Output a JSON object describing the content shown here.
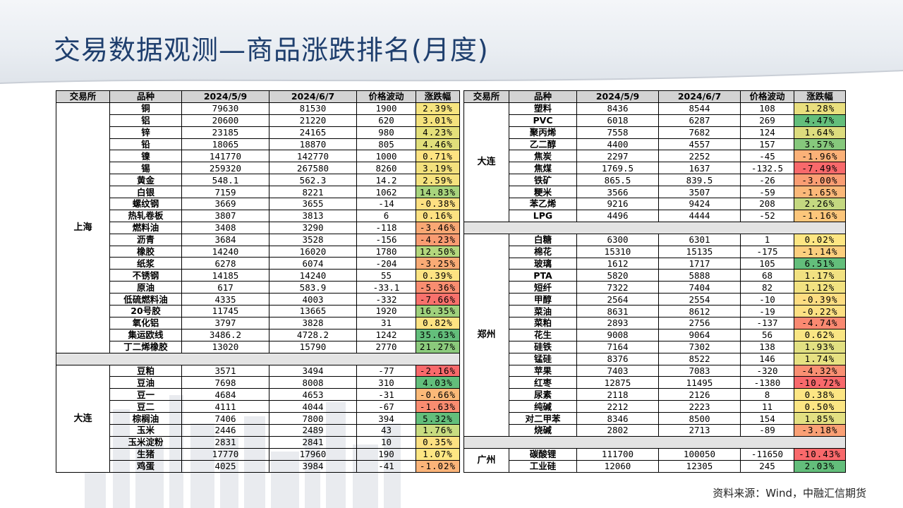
{
  "title": "交易数据观测—商品涨跌排名(月度)",
  "source": "资料来源：Wind，中融汇信期货",
  "headers": [
    "交易所",
    "品种",
    "2024/5/9",
    "2024/6/7",
    "价格波动",
    "涨跌幅"
  ],
  "left": {
    "groups": [
      {
        "exchange": "上海",
        "rows": [
          [
            "铜",
            "79630",
            "81530",
            "1900",
            "2.39%",
            "#f6e47f"
          ],
          [
            "铝",
            "20600",
            "21220",
            "620",
            "3.01%",
            "#f4e27d"
          ],
          [
            "锌",
            "23185",
            "24165",
            "980",
            "4.23%",
            "#e4e07a"
          ],
          [
            "铅",
            "18065",
            "18870",
            "805",
            "4.46%",
            "#e1df7b"
          ],
          [
            "镍",
            "141770",
            "142770",
            "1000",
            "0.71%",
            "#fde382"
          ],
          [
            "锡",
            "259320",
            "267580",
            "8260",
            "3.19%",
            "#f3e17d"
          ],
          [
            "黄金",
            "548.1",
            "562.3",
            "14.2",
            "2.59%",
            "#f5e27e"
          ],
          [
            "白银",
            "7159",
            "8221",
            "1062",
            "14.83%",
            "#a8d47d"
          ],
          [
            "螺纹钢",
            "3669",
            "3655",
            "-14",
            "-0.38%",
            "#fde081"
          ],
          [
            "热轧卷板",
            "3807",
            "3813",
            "6",
            "0.16%",
            "#fde182"
          ],
          [
            "燃料油",
            "3408",
            "3290",
            "-118",
            "-3.46%",
            "#f9a874"
          ],
          [
            "沥青",
            "3684",
            "3528",
            "-156",
            "-4.23%",
            "#f99c72"
          ],
          [
            "橡胶",
            "14240",
            "16020",
            "1780",
            "12.50%",
            "#b4d77d"
          ],
          [
            "纸浆",
            "6278",
            "6074",
            "-204",
            "-3.25%",
            "#f9ab75"
          ],
          [
            "不锈钢",
            "14185",
            "14240",
            "55",
            "0.39%",
            "#fde382"
          ],
          [
            "原油",
            "617",
            "583.9",
            "-33.1",
            "-5.36%",
            "#f98d70"
          ],
          [
            "低硫燃料油",
            "4335",
            "4003",
            "-332",
            "-7.66%",
            "#f8716c"
          ],
          [
            "20号胶",
            "11745",
            "13665",
            "1920",
            "16.35%",
            "#9fd17c"
          ],
          [
            "氧化铝",
            "3797",
            "3828",
            "31",
            "0.82%",
            "#fde382"
          ],
          [
            "集运欧线",
            "3486.2",
            "4728.2",
            "1242",
            "35.63%",
            "#63be7b"
          ],
          [
            "丁二烯橡胶",
            "13020",
            "15790",
            "2770",
            "21.27%",
            "#8bca7c"
          ]
        ]
      },
      {
        "exchange": "大连",
        "rows": [
          [
            "豆粕",
            "3571",
            "3494",
            "-77",
            "-2.16%",
            "#f8696b"
          ],
          [
            "豆油",
            "7698",
            "8008",
            "310",
            "4.03%",
            "#63be7b"
          ],
          [
            "豆一",
            "4684",
            "4653",
            "-31",
            "-0.66%",
            "#fbb978"
          ],
          [
            "豆二",
            "4111",
            "4044",
            "-67",
            "-1.63%",
            "#f98c70"
          ],
          [
            "棕榈油",
            "7406",
            "7800",
            "394",
            "5.32%",
            "#63be7b"
          ],
          [
            "玉米",
            "2446",
            "2489",
            "43",
            "1.76%",
            "#c9dc80"
          ],
          [
            "玉米淀粉",
            "2831",
            "2841",
            "10",
            "0.35%",
            "#fde182"
          ],
          [
            "生猪",
            "17770",
            "17960",
            "190",
            "1.07%",
            "#fde683"
          ],
          [
            "鸡蛋",
            "4025",
            "3984",
            "-41",
            "-1.02%",
            "#fbb479"
          ]
        ]
      }
    ]
  },
  "right": {
    "groups": [
      {
        "exchange": "大连",
        "rows": [
          [
            "塑料",
            "8436",
            "8544",
            "108",
            "1.28%",
            "#e9df7e"
          ],
          [
            "PVC",
            "6018",
            "6287",
            "269",
            "4.47%",
            "#63be7b"
          ],
          [
            "聚丙烯",
            "7558",
            "7682",
            "124",
            "1.64%",
            "#dcdc7e"
          ],
          [
            "乙二醇",
            "4400",
            "4557",
            "157",
            "3.57%",
            "#86c87c"
          ],
          [
            "焦炭",
            "2297",
            "2252",
            "-45",
            "-1.96%",
            "#fbb178"
          ],
          [
            "焦煤",
            "1769.5",
            "1637",
            "-132.5",
            "-7.49%",
            "#f8696b"
          ],
          [
            "铁矿",
            "865.5",
            "839.5",
            "-26",
            "-3.00%",
            "#fa9d73"
          ],
          [
            "粳米",
            "3566",
            "3507",
            "-59",
            "-1.65%",
            "#fbb879"
          ],
          [
            "苯乙烯",
            "9216",
            "9424",
            "208",
            "2.26%",
            "#c4d880"
          ],
          [
            "LPG",
            "4496",
            "4444",
            "-52",
            "-1.16%",
            "#fcc67b"
          ]
        ]
      },
      {
        "exchange": "郑州",
        "rows": [
          [
            "白糖",
            "6300",
            "6301",
            "1",
            "0.02%",
            "#fde683"
          ],
          [
            "棉花",
            "15310",
            "15135",
            "-175",
            "-1.14%",
            "#fccf7e"
          ],
          [
            "玻璃",
            "1612",
            "1717",
            "105",
            "6.51%",
            "#63be7b"
          ],
          [
            "PTA",
            "5820",
            "5888",
            "68",
            "1.17%",
            "#f1e181"
          ],
          [
            "短纤",
            "7322",
            "7404",
            "82",
            "1.12%",
            "#f2e281"
          ],
          [
            "甲醇",
            "2564",
            "2554",
            "-10",
            "-0.39%",
            "#fddd82"
          ],
          [
            "菜油",
            "8631",
            "8612",
            "-19",
            "-0.22%",
            "#fde083"
          ],
          [
            "菜粕",
            "2893",
            "2756",
            "-137",
            "-4.74%",
            "#f98971"
          ],
          [
            "花生",
            "9008",
            "9064",
            "56",
            "0.62%",
            "#f9e583"
          ],
          [
            "硅铁",
            "7164",
            "7302",
            "138",
            "1.93%",
            "#e2e082"
          ],
          [
            "锰硅",
            "8376",
            "8522",
            "146",
            "1.74%",
            "#e6e182"
          ],
          [
            "苹果",
            "7403",
            "7083",
            "-320",
            "-4.32%",
            "#f98f72"
          ],
          [
            "红枣",
            "12875",
            "11495",
            "-1380",
            "-10.72%",
            "#f8696b"
          ],
          [
            "尿素",
            "2118",
            "2126",
            "8",
            "0.38%",
            "#fce583"
          ],
          [
            "纯碱",
            "2212",
            "2223",
            "11",
            "0.50%",
            "#fbe583"
          ],
          [
            "对二甲苯",
            "8346",
            "8500",
            "154",
            "1.85%",
            "#e3e082"
          ],
          [
            "烧碱",
            "2802",
            "2713",
            "-89",
            "-3.18%",
            "#faa075"
          ]
        ]
      },
      {
        "exchange": "广州",
        "rows": [
          [
            "碳酸锂",
            "111700",
            "100050",
            "-11650",
            "-10.43%",
            "#f8696b"
          ],
          [
            "工业硅",
            "12060",
            "12305",
            "245",
            "2.03%",
            "#63be7b"
          ]
        ]
      }
    ]
  }
}
